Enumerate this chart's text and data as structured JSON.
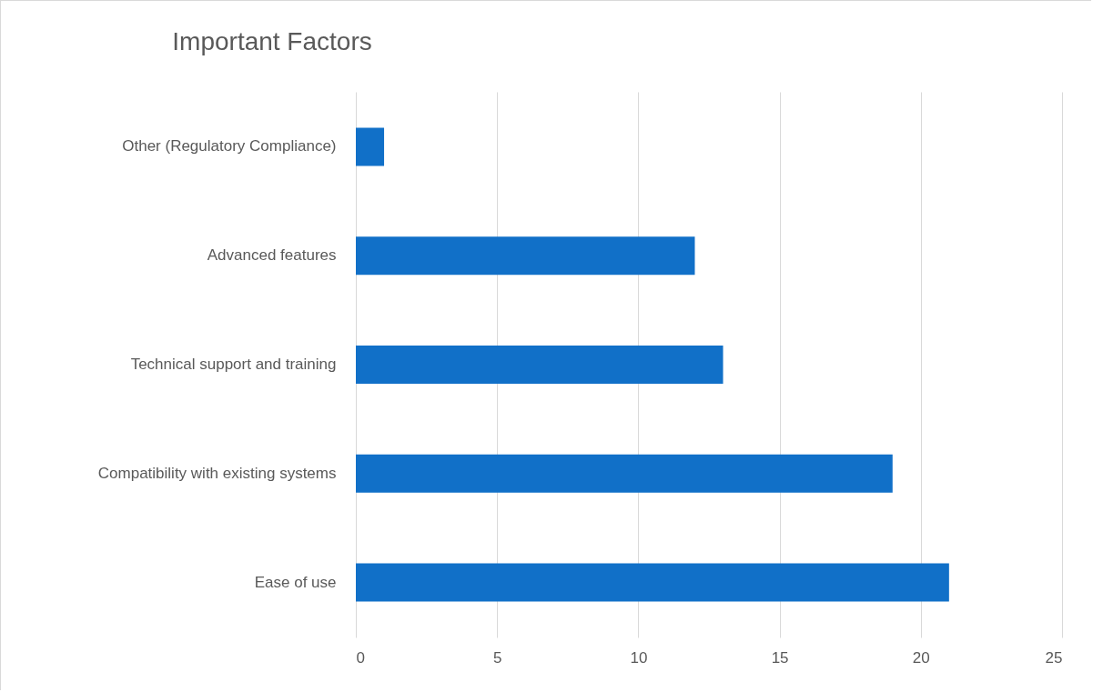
{
  "chart_data": {
    "type": "bar",
    "title": "Important Factors",
    "orientation": "horizontal",
    "categories": [
      "Other (Regulatory Compliance)",
      "Advanced features",
      "Technical support and training",
      "Compatibility with existing systems",
      "Ease of use"
    ],
    "values": [
      1,
      12,
      13,
      19,
      21
    ],
    "color": "#1170c8",
    "xlim": [
      0,
      25
    ],
    "xticks": [
      0,
      5,
      10,
      15,
      20,
      25
    ],
    "grid": "x"
  }
}
